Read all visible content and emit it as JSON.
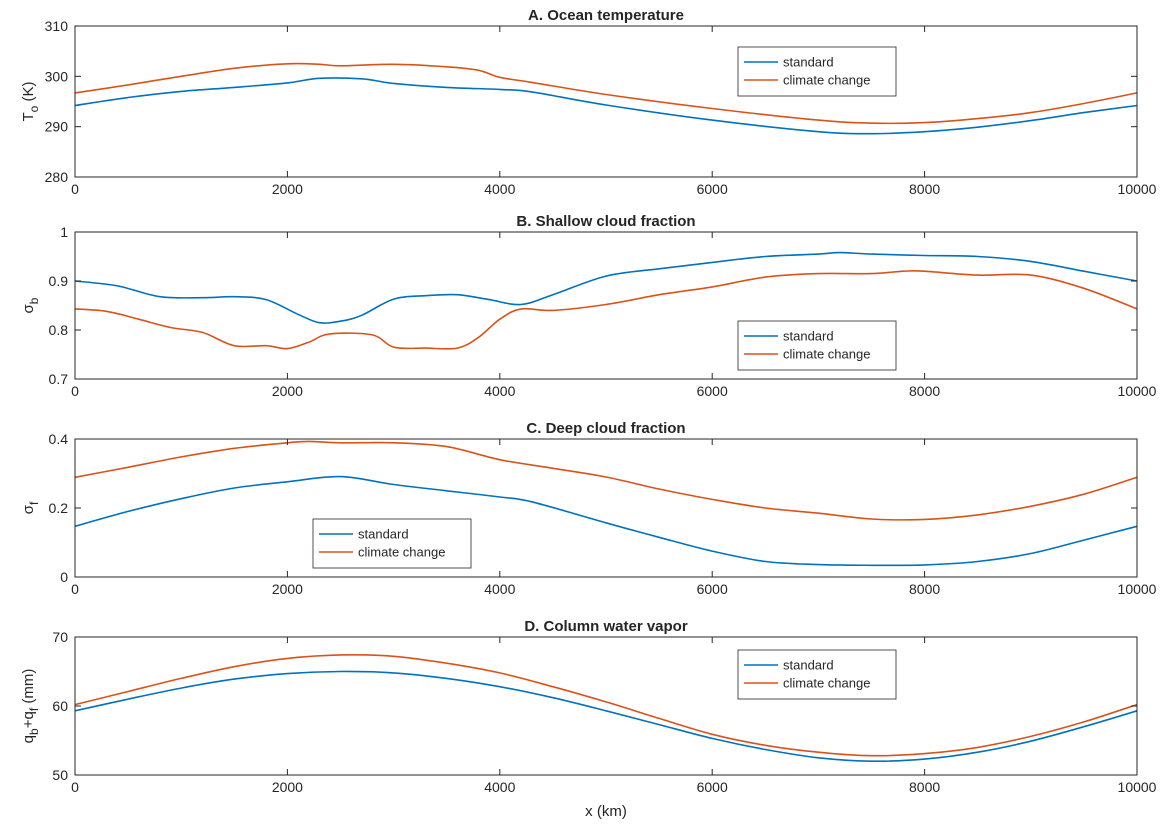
{
  "figure": {
    "xlabel": "x (km)",
    "colors": {
      "standard": "#0072BD",
      "climate": "#D95319"
    }
  },
  "chart_data": [
    {
      "type": "line",
      "title": "A. Ocean temperature",
      "ylabel": {
        "main": "T",
        "sub": "o",
        "rest": " (K)"
      },
      "xlim": [
        0,
        10000
      ],
      "ylim": [
        280,
        310
      ],
      "xticks": [
        0,
        2000,
        4000,
        6000,
        8000,
        10000
      ],
      "yticks": [
        280,
        290,
        300,
        310
      ],
      "legend": "top-right",
      "series": [
        {
          "name": "standard",
          "x": [
            0,
            500,
            1000,
            1500,
            2000,
            2300,
            2700,
            3000,
            3500,
            4000,
            4300,
            5000,
            6000,
            7000,
            7500,
            8000,
            8500,
            9000,
            9500,
            10000
          ],
          "values": [
            294.2,
            295.8,
            297.0,
            297.8,
            298.7,
            299.6,
            299.5,
            298.6,
            297.8,
            297.4,
            296.9,
            294.3,
            291.3,
            289.0,
            288.6,
            289.0,
            289.9,
            291.2,
            292.8,
            294.2
          ]
        },
        {
          "name": "climate change",
          "x": [
            0,
            500,
            1000,
            1500,
            2000,
            2300,
            2500,
            3000,
            3500,
            3800,
            4000,
            4300,
            5000,
            6000,
            7000,
            7500,
            8000,
            8500,
            9000,
            9500,
            10000
          ],
          "values": [
            296.7,
            298.3,
            300.0,
            301.6,
            302.5,
            302.4,
            302.1,
            302.4,
            301.9,
            301.2,
            299.8,
            298.8,
            296.4,
            293.6,
            291.3,
            290.7,
            290.8,
            291.6,
            292.8,
            294.6,
            296.7
          ]
        }
      ]
    },
    {
      "type": "line",
      "title": "B. Shallow cloud fraction",
      "ylabel": {
        "main": "σ",
        "sub": "b",
        "rest": ""
      },
      "xlim": [
        0,
        10000
      ],
      "ylim": [
        0.7,
        1.0
      ],
      "xticks": [
        0,
        2000,
        4000,
        6000,
        8000,
        10000
      ],
      "yticks": [
        0.7,
        0.8,
        0.9,
        1
      ],
      "legend": "bottom-center",
      "series": [
        {
          "name": "standard",
          "x": [
            0,
            400,
            800,
            1200,
            1500,
            1800,
            2100,
            2300,
            2500,
            2700,
            3000,
            3300,
            3600,
            3900,
            4200,
            4500,
            5000,
            5500,
            6000,
            6500,
            7000,
            7200,
            7500,
            8000,
            8500,
            9000,
            9500,
            10000
          ],
          "values": [
            0.9,
            0.89,
            0.868,
            0.866,
            0.868,
            0.862,
            0.832,
            0.815,
            0.818,
            0.83,
            0.863,
            0.87,
            0.872,
            0.862,
            0.852,
            0.872,
            0.91,
            0.925,
            0.938,
            0.95,
            0.955,
            0.958,
            0.955,
            0.952,
            0.95,
            0.94,
            0.92,
            0.9
          ]
        },
        {
          "name": "climate change",
          "x": [
            0,
            300,
            600,
            900,
            1200,
            1500,
            1800,
            2000,
            2200,
            2400,
            2800,
            3000,
            3300,
            3600,
            3800,
            4000,
            4200,
            4500,
            5000,
            5500,
            6000,
            6500,
            7000,
            7500,
            7800,
            8000,
            8500,
            9000,
            9500,
            10000
          ],
          "values": [
            0.843,
            0.838,
            0.822,
            0.805,
            0.795,
            0.768,
            0.768,
            0.762,
            0.775,
            0.792,
            0.79,
            0.765,
            0.763,
            0.763,
            0.785,
            0.822,
            0.843,
            0.84,
            0.852,
            0.872,
            0.888,
            0.908,
            0.915,
            0.915,
            0.92,
            0.92,
            0.912,
            0.912,
            0.885,
            0.843
          ]
        }
      ]
    },
    {
      "type": "line",
      "title": "C. Deep cloud fraction",
      "ylabel": {
        "main": "σ",
        "sub": "f",
        "rest": ""
      },
      "xlim": [
        0,
        10000
      ],
      "ylim": [
        0,
        0.4
      ],
      "xticks": [
        0,
        2000,
        4000,
        6000,
        8000,
        10000
      ],
      "yticks": [
        0,
        0.2,
        0.4
      ],
      "legend": "bottom-left",
      "series": [
        {
          "name": "standard",
          "x": [
            0,
            500,
            1000,
            1500,
            2000,
            2500,
            3000,
            3500,
            4000,
            4300,
            5000,
            5500,
            6000,
            6500,
            7000,
            7500,
            8000,
            8500,
            9000,
            9500,
            10000
          ],
          "values": [
            0.147,
            0.19,
            0.227,
            0.258,
            0.276,
            0.291,
            0.268,
            0.25,
            0.232,
            0.218,
            0.157,
            0.115,
            0.075,
            0.045,
            0.036,
            0.034,
            0.035,
            0.045,
            0.068,
            0.107,
            0.147
          ]
        },
        {
          "name": "climate change",
          "x": [
            0,
            500,
            1000,
            1500,
            2000,
            2200,
            2500,
            3000,
            3500,
            4000,
            4500,
            5000,
            5500,
            6000,
            6500,
            7000,
            7500,
            8000,
            8500,
            9000,
            9500,
            10000
          ],
          "values": [
            0.289,
            0.318,
            0.348,
            0.373,
            0.389,
            0.393,
            0.389,
            0.389,
            0.378,
            0.34,
            0.315,
            0.29,
            0.255,
            0.225,
            0.2,
            0.185,
            0.168,
            0.167,
            0.18,
            0.205,
            0.24,
            0.289
          ]
        }
      ]
    },
    {
      "type": "line",
      "title": "D. Column water vapor",
      "ylabel": {
        "main": "q",
        "sub": "b",
        "mid": "+q",
        "sub2": "f",
        "rest": " (mm)"
      },
      "xlim": [
        0,
        10000
      ],
      "ylim": [
        50,
        70
      ],
      "xticks": [
        0,
        2000,
        4000,
        6000,
        8000,
        10000
      ],
      "yticks": [
        50,
        60,
        70
      ],
      "legend": "top-right",
      "series": [
        {
          "name": "standard",
          "x": [
            0,
            500,
            1000,
            1500,
            2000,
            2500,
            3000,
            3500,
            4000,
            4500,
            5000,
            5500,
            6000,
            6500,
            7000,
            7500,
            8000,
            8500,
            9000,
            9500,
            10000
          ],
          "values": [
            59.3,
            61.0,
            62.6,
            63.9,
            64.7,
            65.0,
            64.8,
            64.0,
            62.8,
            61.2,
            59.3,
            57.3,
            55.3,
            53.7,
            52.5,
            52.0,
            52.3,
            53.3,
            54.9,
            57.0,
            59.3
          ]
        },
        {
          "name": "climate change",
          "x": [
            0,
            500,
            1000,
            1500,
            2000,
            2500,
            3000,
            3500,
            4000,
            4500,
            5000,
            5500,
            6000,
            6500,
            7000,
            7500,
            8000,
            8500,
            9000,
            9500,
            10000
          ],
          "values": [
            60.2,
            62.1,
            64.0,
            65.7,
            66.9,
            67.4,
            67.2,
            66.2,
            64.8,
            62.8,
            60.6,
            58.2,
            55.9,
            54.3,
            53.3,
            52.8,
            53.1,
            54.0,
            55.6,
            57.7,
            60.2
          ]
        }
      ]
    }
  ]
}
